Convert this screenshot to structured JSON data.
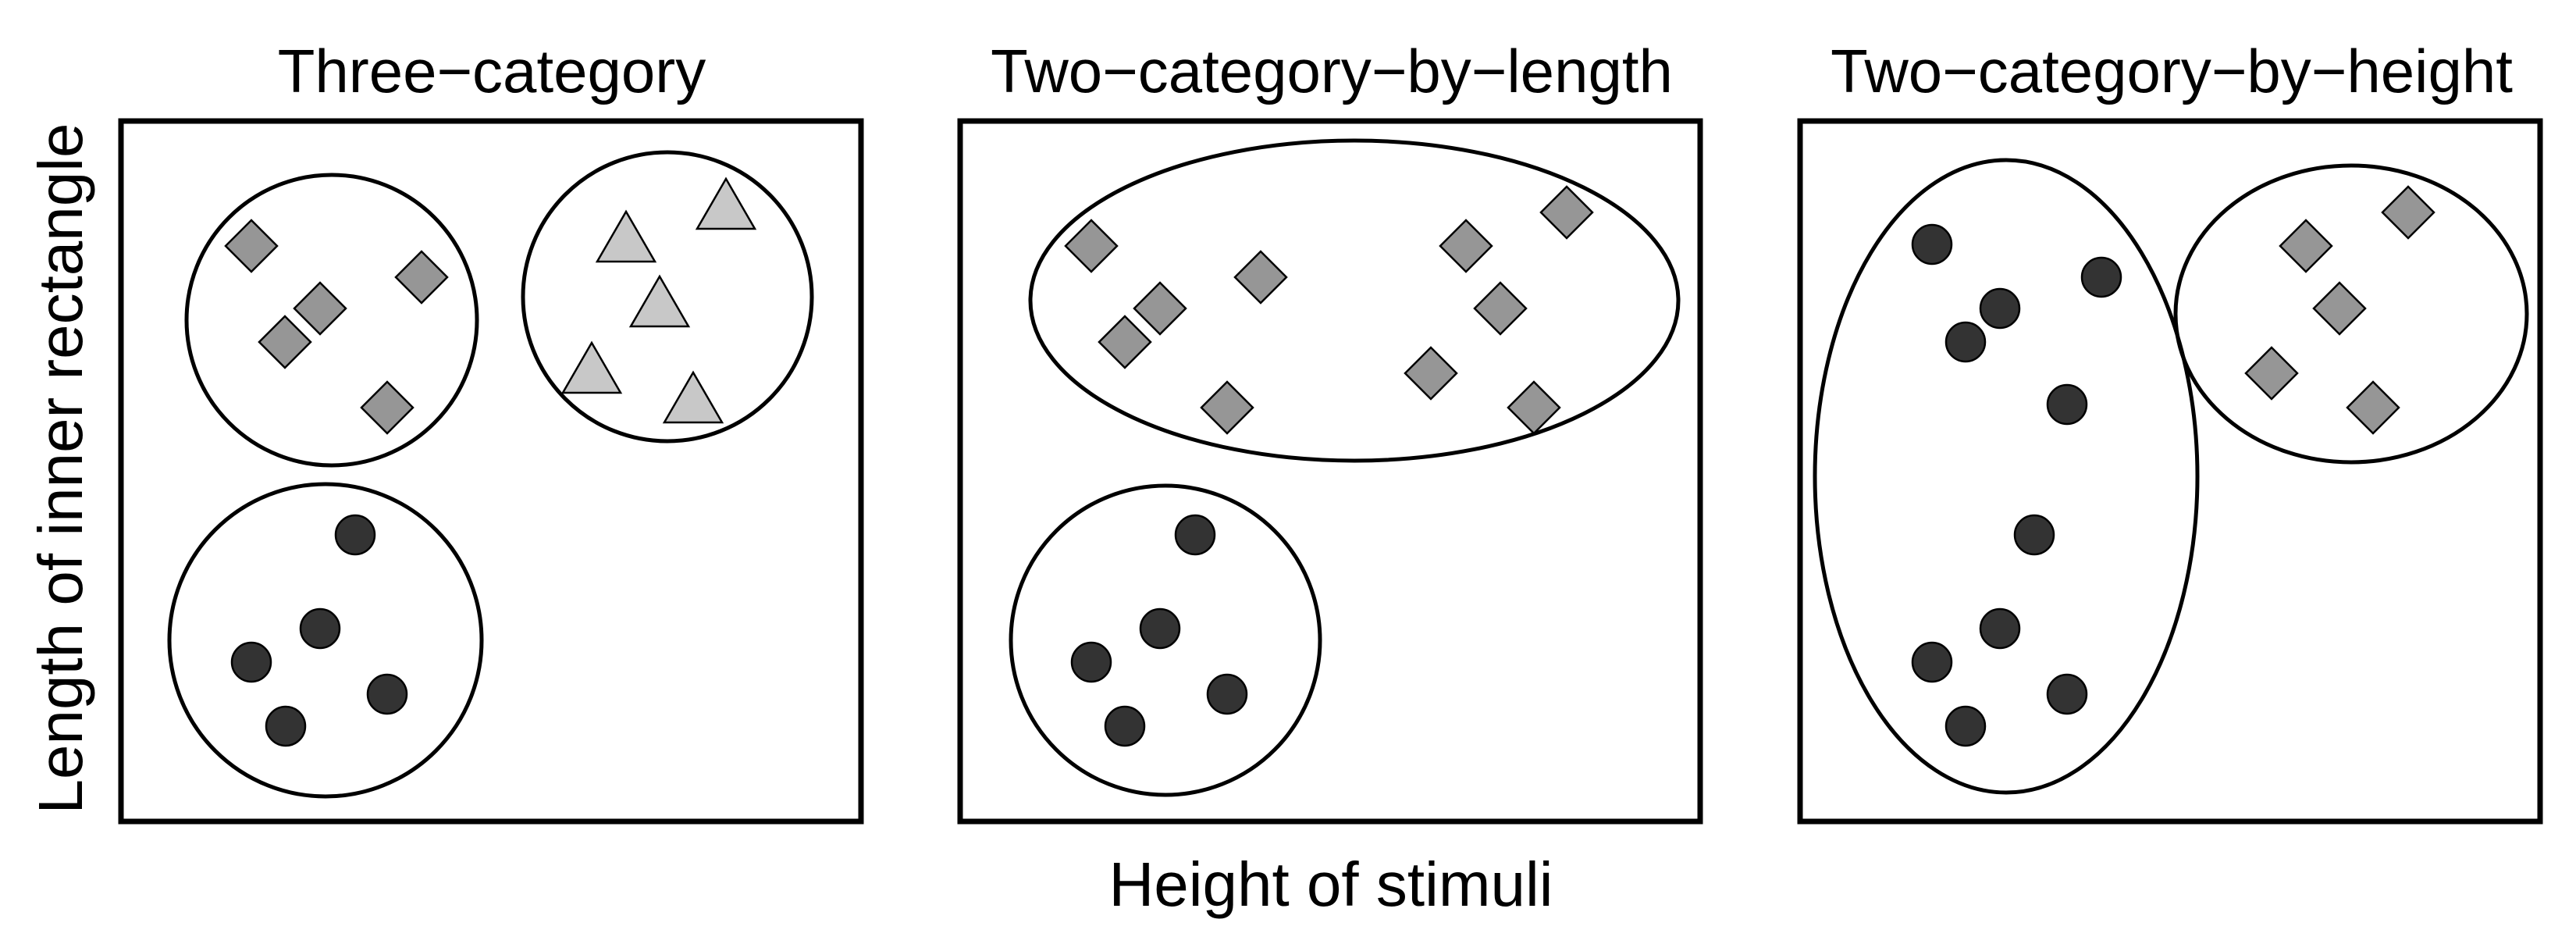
{
  "axes": {
    "xlabel": "Height of stimuli",
    "ylabel": "Length of inner rectangle"
  },
  "colors": {
    "circle_fill": "#333333",
    "diamond_fill": "#969696",
    "triangle_fill": "#c8c8c8",
    "outline": "#000000",
    "background": "#ffffff"
  },
  "marker_names": {
    "circle": "circle-stimulus",
    "diamond": "diamond-stimulus",
    "triangle": "triangle-stimulus"
  },
  "panels": [
    {
      "title": "Three−category"
    },
    {
      "title": "Two−category−by−length"
    },
    {
      "title": "Two−category−by−height"
    }
  ]
}
